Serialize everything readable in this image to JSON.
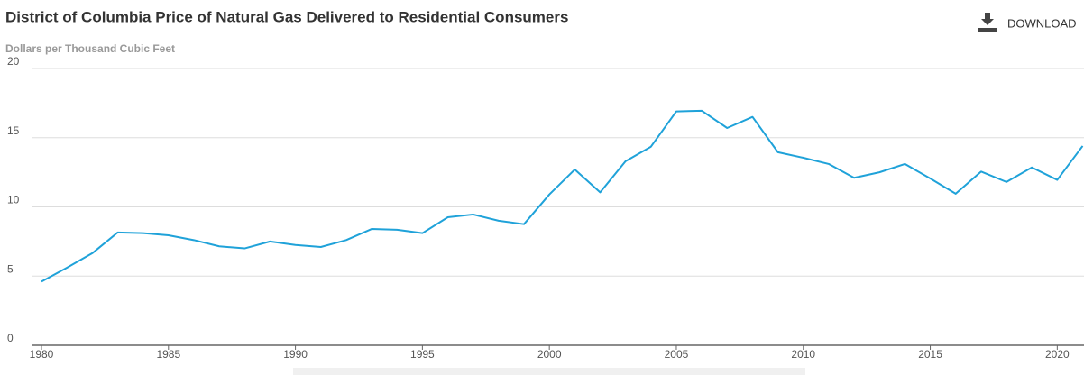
{
  "chart_data": {
    "type": "line",
    "title": "District of Columbia Price of Natural Gas Delivered to Residential Consumers",
    "subtitle": "Dollars per Thousand Cubic Feet",
    "download": "DOWNLOAD",
    "x": [
      1980,
      1981,
      1982,
      1983,
      1984,
      1985,
      1986,
      1987,
      1988,
      1989,
      1990,
      1991,
      1992,
      1993,
      1994,
      1995,
      1996,
      1997,
      1998,
      1999,
      2000,
      2001,
      2002,
      2003,
      2004,
      2005,
      2006,
      2007,
      2008,
      2009,
      2010,
      2011,
      2012,
      2013,
      2014,
      2015,
      2016,
      2017,
      2018,
      2019,
      2020,
      2021
    ],
    "series": [
      {
        "name": "District of Columbia",
        "color": "#1fa2d9",
        "values": [
          4.6,
          5.6,
          6.65,
          8.15,
          8.1,
          7.95,
          7.6,
          7.15,
          7.0,
          7.5,
          7.25,
          7.1,
          7.6,
          8.4,
          8.35,
          8.1,
          9.25,
          9.45,
          9.0,
          8.75,
          10.9,
          12.7,
          11.05,
          13.3,
          14.35,
          16.9,
          16.95,
          15.7,
          16.5,
          13.95,
          13.55,
          13.1,
          12.1,
          12.5,
          13.1,
          12.05,
          10.95,
          12.55,
          11.8,
          12.85,
          11.95,
          14.4
        ]
      }
    ],
    "xlim": [
      1980,
      2021
    ],
    "xticks": [
      1980,
      1985,
      1990,
      1995,
      2000,
      2005,
      2010,
      2015,
      2020
    ],
    "ylim": [
      0,
      20
    ],
    "yticks": [
      0,
      5,
      10,
      15,
      20
    ],
    "grid": true
  }
}
